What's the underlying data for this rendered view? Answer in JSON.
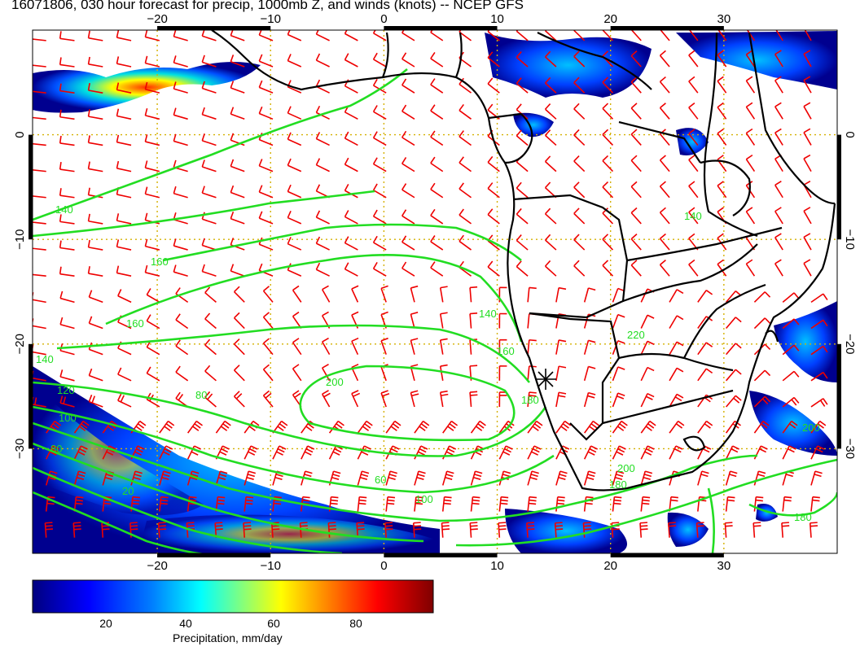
{
  "title": "16071806, 030 hour forecast for precip, 1000mb Z, and winds (knots) -- NCEP GFS",
  "map": {
    "projection": "lon-lat",
    "lon_range": [
      -31,
      40
    ],
    "lat_range": [
      -40,
      10
    ],
    "lon_ticks": [
      -20,
      -10,
      0,
      10,
      20,
      30
    ],
    "lat_ticks": [
      0,
      -10,
      -20,
      -30
    ],
    "lon_tick_labels": [
      "−20",
      "−10",
      "0",
      "10",
      "20",
      "30"
    ],
    "lat_tick_labels": [
      "0",
      "−10",
      "−20",
      "−30"
    ],
    "grid": true,
    "grid_color": "#d4b000",
    "contour_color": "#22dd22",
    "wind_barb_color": "#ee0000",
    "coastline_color": "#000000",
    "contour_labels": [
      "20",
      "60",
      "80",
      "100",
      "120",
      "140",
      "160",
      "180",
      "200",
      "220"
    ],
    "marker": "star-marker"
  },
  "colorbar": {
    "label": "Precipitation, mm/day",
    "range": [
      0,
      100
    ],
    "ticks": [
      "20",
      "40",
      "60",
      "80"
    ],
    "colors": [
      "#00007f",
      "#0000ff",
      "#0080ff",
      "#00ffff",
      "#80ff80",
      "#ffff00",
      "#ff8000",
      "#ff0000",
      "#7f0000"
    ]
  }
}
